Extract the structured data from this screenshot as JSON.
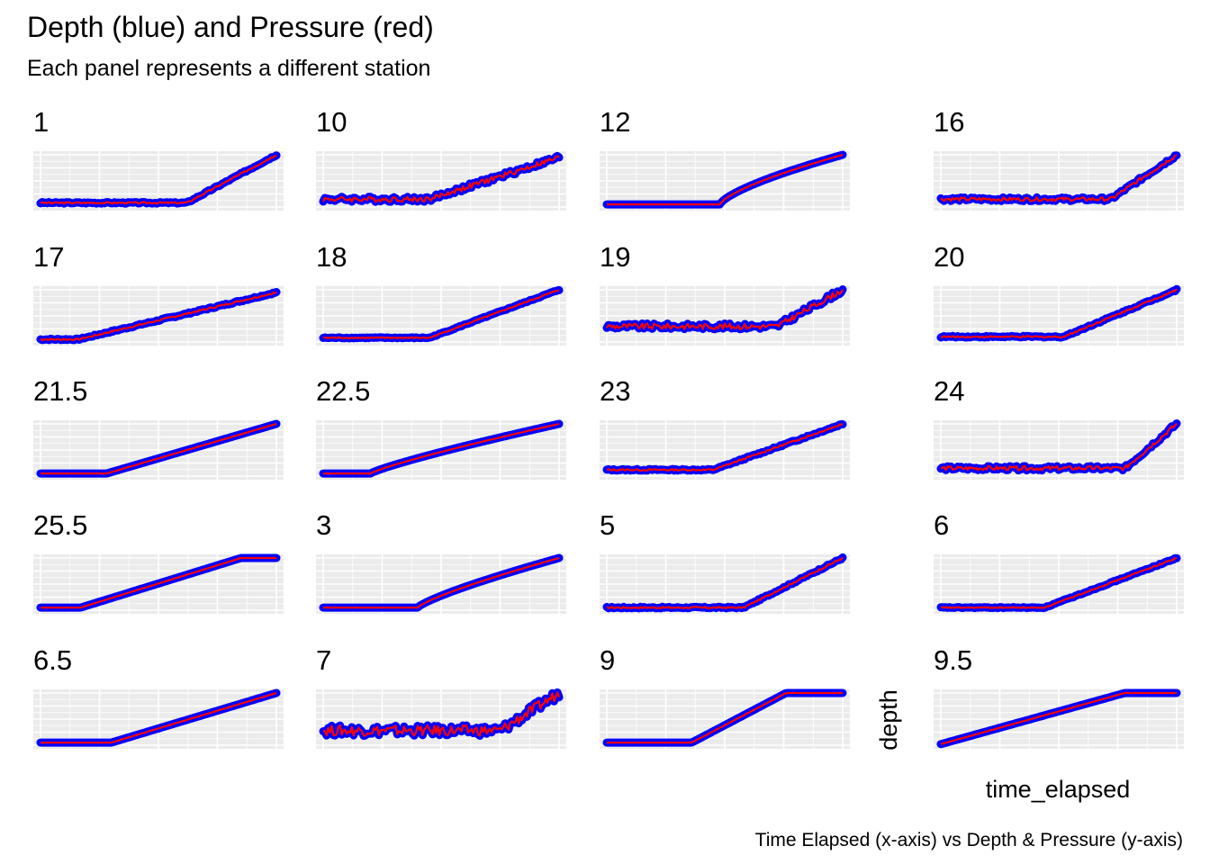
{
  "chart_data": {
    "type": "line",
    "title": "Depth (blue) and Pressure (red)",
    "subtitle": "Each panel represents a different station",
    "xlabel": "time_elapsed",
    "ylabel": "depth",
    "caption": "Time Elapsed (x-axis) vs Depth & Pressure (y-axis)",
    "grid": true,
    "layout": "facet grid, 5 rows x 4 columns",
    "series": [
      {
        "name": "Depth",
        "color": "#0000ff"
      },
      {
        "name": "Pressure",
        "color": "#ff0000"
      }
    ],
    "panels": [
      {
        "label": "1",
        "profile": {
          "flat_end": 0.62,
          "start": 0.08,
          "end": 1.0,
          "curve": 1.0,
          "noise": 0.03
        }
      },
      {
        "label": "10",
        "profile": {
          "flat_end": 0.45,
          "start": 0.15,
          "end": 0.95,
          "curve": 1.0,
          "noise": 0.1
        }
      },
      {
        "label": "12",
        "profile": {
          "flat_end": 0.48,
          "start": 0.05,
          "end": 1.0,
          "curve": 0.7,
          "noise": 0.0
        }
      },
      {
        "label": "16",
        "profile": {
          "flat_end": 0.72,
          "start": 0.15,
          "end": 1.0,
          "curve": 1.0,
          "noise": 0.07
        }
      },
      {
        "label": "17",
        "profile": {
          "flat_end": 0.16,
          "start": 0.05,
          "end": 0.95,
          "curve": 1.0,
          "noise": 0.03
        }
      },
      {
        "label": "18",
        "profile": {
          "flat_end": 0.45,
          "start": 0.08,
          "end": 1.0,
          "curve": 1.0,
          "noise": 0.02
        }
      },
      {
        "label": "19",
        "profile": {
          "flat_end": 0.72,
          "start": 0.3,
          "end": 1.0,
          "curve": 1.0,
          "noise": 0.11
        }
      },
      {
        "label": "20",
        "profile": {
          "flat_end": 0.52,
          "start": 0.1,
          "end": 1.0,
          "curve": 1.0,
          "noise": 0.03
        }
      },
      {
        "label": "21.5",
        "profile": {
          "flat_end": 0.28,
          "start": 0.05,
          "end": 1.0,
          "curve": 1.0,
          "noise": 0.0
        }
      },
      {
        "label": "22.5",
        "profile": {
          "flat_end": 0.2,
          "start": 0.05,
          "end": 1.0,
          "curve": 0.85,
          "noise": 0.0
        }
      },
      {
        "label": "23",
        "profile": {
          "flat_end": 0.45,
          "start": 0.12,
          "end": 1.0,
          "curve": 1.0,
          "noise": 0.03
        }
      },
      {
        "label": "24",
        "profile": {
          "flat_end": 0.78,
          "start": 0.15,
          "end": 1.0,
          "curve": 1.0,
          "noise": 0.08
        }
      },
      {
        "label": "25.5",
        "profile": {
          "flat_end": 0.17,
          "start": 0.05,
          "end": 1.0,
          "curve": 1.0,
          "noise": 0.0,
          "plateau": 0.85
        }
      },
      {
        "label": "3",
        "profile": {
          "flat_end": 0.4,
          "start": 0.05,
          "end": 1.0,
          "curve": 0.8,
          "noise": 0.0
        }
      },
      {
        "label": "5",
        "profile": {
          "flat_end": 0.58,
          "start": 0.05,
          "end": 1.0,
          "curve": 1.0,
          "noise": 0.03
        }
      },
      {
        "label": "6",
        "profile": {
          "flat_end": 0.44,
          "start": 0.05,
          "end": 1.0,
          "curve": 1.0,
          "noise": 0.02
        }
      },
      {
        "label": "6.5",
        "profile": {
          "flat_end": 0.3,
          "start": 0.05,
          "end": 1.0,
          "curve": 1.0,
          "noise": 0.0
        }
      },
      {
        "label": "7",
        "profile": {
          "flat_end": 0.75,
          "start": 0.28,
          "end": 1.0,
          "curve": 1.0,
          "noise": 0.2
        }
      },
      {
        "label": "9",
        "profile": {
          "flat_end": 0.36,
          "start": 0.05,
          "end": 1.0,
          "curve": 1.0,
          "noise": 0.0,
          "plateau": 0.76
        }
      },
      {
        "label": "9.5",
        "profile": {
          "flat_end": 0.0,
          "start": 0.02,
          "end": 1.0,
          "curve": 1.0,
          "noise": 0.0,
          "plateau": 0.78
        }
      }
    ]
  }
}
